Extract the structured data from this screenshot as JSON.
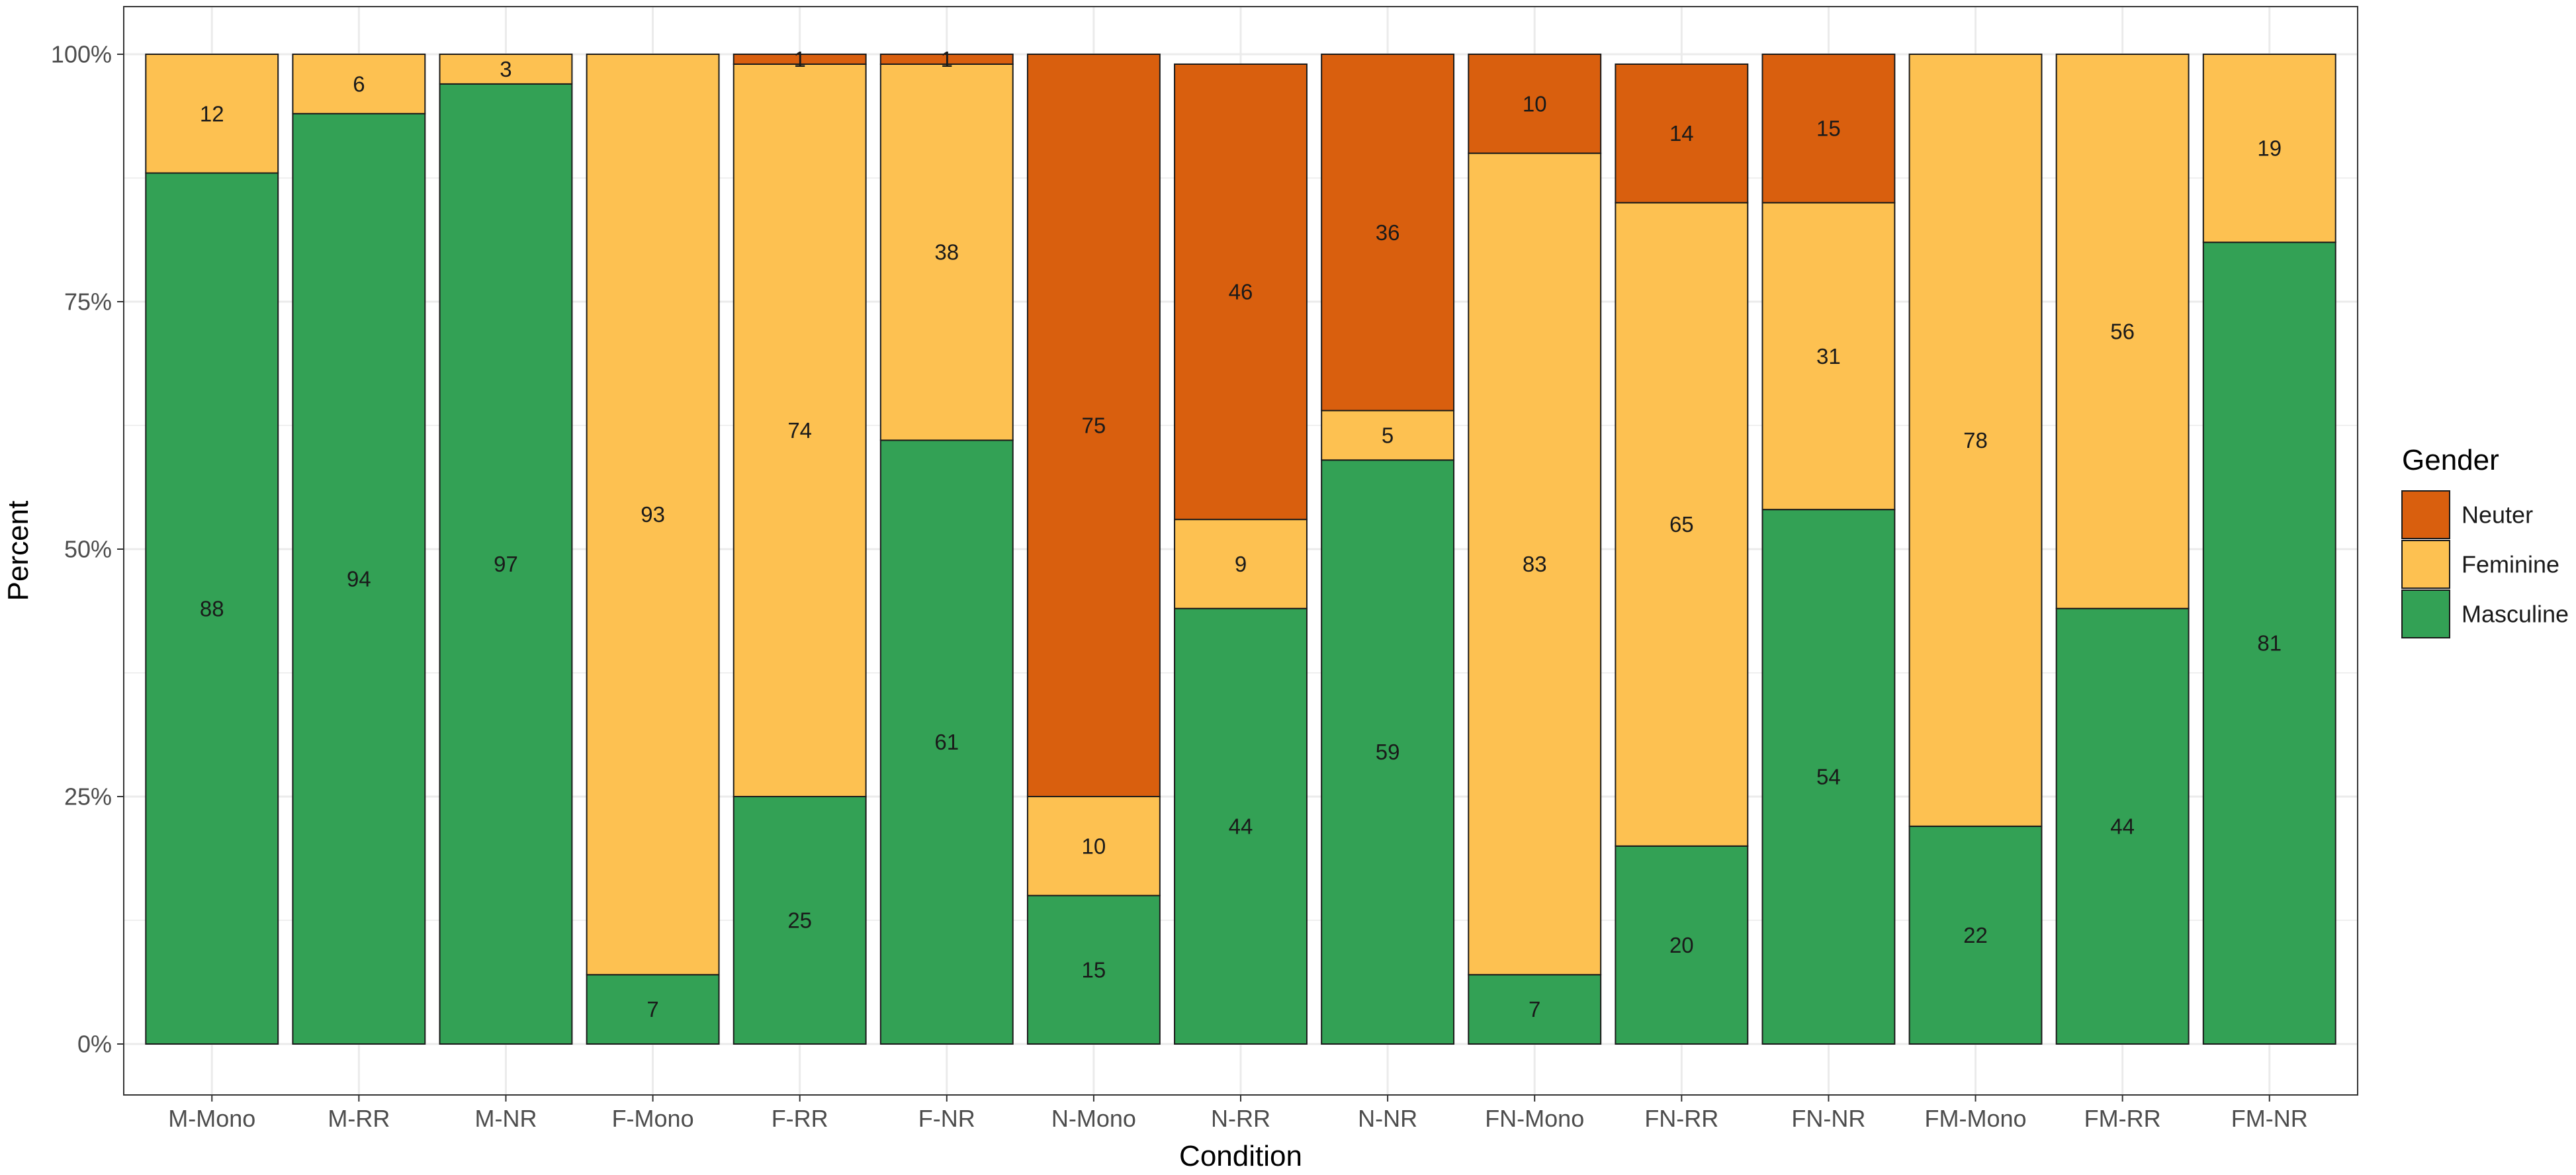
{
  "chart_data": {
    "type": "bar",
    "stacked": true,
    "title": "",
    "xlabel": "Condition",
    "ylabel": "Percent",
    "ylim": [
      0,
      100
    ],
    "yticks": [
      0,
      25,
      50,
      75,
      100
    ],
    "ytick_labels": [
      "0%",
      "25%",
      "50%",
      "75%",
      "100%"
    ],
    "grid": true,
    "legend_position": "right",
    "legend_title": "Gender",
    "categories": [
      "M-Mono",
      "M-RR",
      "M-NR",
      "F-Mono",
      "F-RR",
      "F-NR",
      "N-Mono",
      "N-RR",
      "N-NR",
      "FN-Mono",
      "FN-RR",
      "FN-NR",
      "FM-Mono",
      "FM-RR",
      "FM-NR"
    ],
    "series": [
      {
        "name": "Masculine",
        "color": "#33a155",
        "values": [
          88,
          94,
          97,
          7,
          25,
          61,
          15,
          44,
          59,
          7,
          20,
          54,
          22,
          44,
          81
        ]
      },
      {
        "name": "Feminine",
        "color": "#fdc151",
        "values": [
          12,
          6,
          3,
          93,
          74,
          38,
          10,
          9,
          5,
          83,
          65,
          31,
          78,
          56,
          19
        ]
      },
      {
        "name": "Neuter",
        "color": "#d95f0e",
        "values": [
          0,
          0,
          0,
          0,
          1,
          1,
          75,
          46,
          36,
          10,
          14,
          15,
          0,
          0,
          0
        ]
      }
    ],
    "legend_order": [
      "Neuter",
      "Feminine",
      "Masculine"
    ],
    "colors": {
      "panel_border": "#333333",
      "grid": "#ebebeb",
      "bar_outline": "#1a1a1a"
    }
  }
}
